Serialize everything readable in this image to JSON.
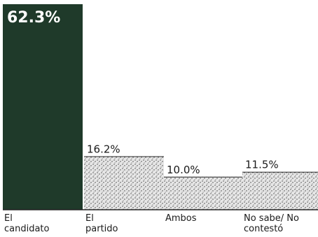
{
  "chart_data": {
    "type": "bar",
    "categories": [
      [
        "El",
        "candidato"
      ],
      [
        "El",
        "partido"
      ],
      [
        "Ambos"
      ],
      [
        "No sabe/ No",
        "contestó"
      ]
    ],
    "values": [
      62.3,
      16.2,
      10.0,
      11.5
    ],
    "value_labels": [
      "62.3%",
      "16.2%",
      "10.0%",
      "11.5%"
    ],
    "title": "",
    "xlabel": "",
    "ylabel": "",
    "ylim": [
      0,
      62.3
    ],
    "grid": false,
    "legend": "none",
    "colors": {
      "highlight": "#1f3a2a",
      "others": "#d9d9d9",
      "baseline": "#222222"
    }
  }
}
